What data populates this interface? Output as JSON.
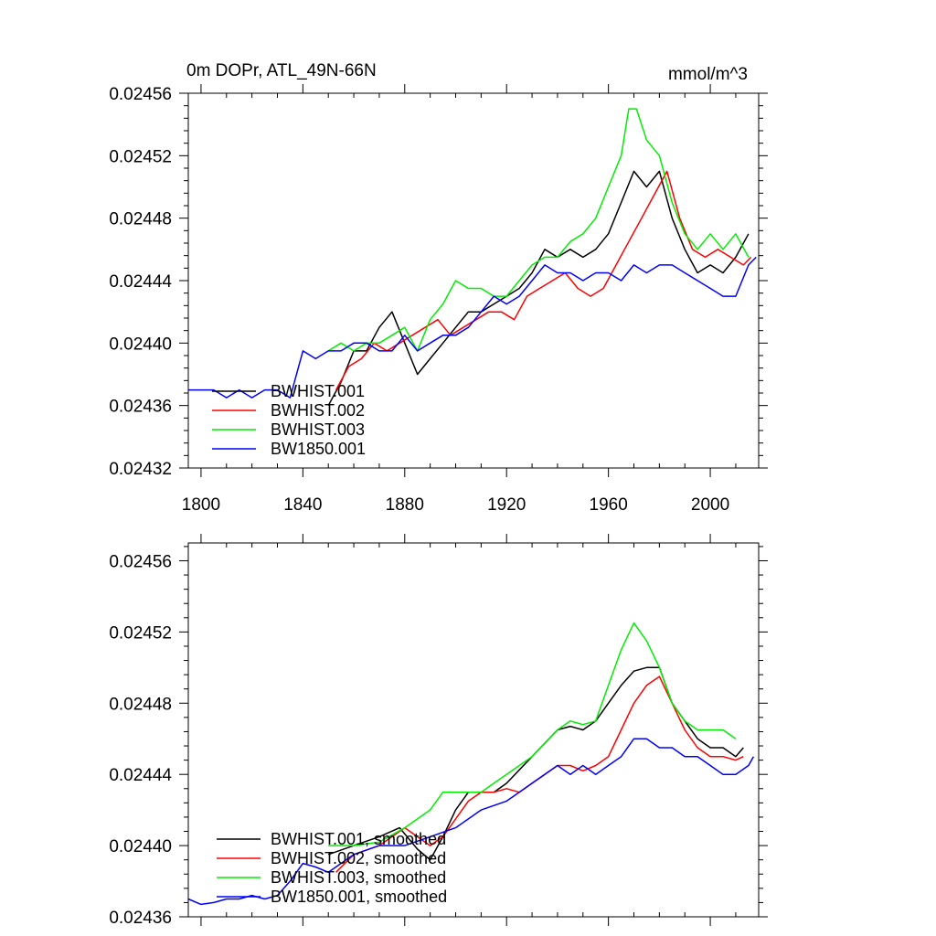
{
  "chart_data": [
    {
      "type": "line",
      "title": "0m DOPr, ATL_49N-66N",
      "units": "mmol/m^3",
      "xlim": [
        1795,
        2019
      ],
      "ylim": [
        0.02432,
        0.02456
      ],
      "xticks": [
        1800,
        1840,
        1880,
        1920,
        1960,
        2000
      ],
      "xtick_labels": [
        "1800",
        "1840",
        "1880",
        "1920",
        "1960",
        "2000"
      ],
      "yticks": [
        0.02432,
        0.02436,
        0.0244,
        0.02444,
        0.02448,
        0.02452,
        0.02456
      ],
      "ytick_labels": [
        "0.02432",
        "0.02436",
        "0.02440",
        "0.02444",
        "0.02448",
        "0.02452",
        "0.02456"
      ],
      "legend_position": "bottom-left",
      "series": [
        {
          "name": "BWHIST.001",
          "color": "#000000",
          "x": [
            1850,
            1855,
            1860,
            1865,
            1870,
            1875,
            1880,
            1885,
            1890,
            1895,
            1900,
            1905,
            1910,
            1915,
            1920,
            1925,
            1930,
            1935,
            1940,
            1945,
            1950,
            1955,
            1960,
            1965,
            1970,
            1975,
            1980,
            1985,
            1990,
            1995,
            2000,
            2005,
            2010,
            2015
          ],
          "y": [
            0.02436,
            0.024375,
            0.024395,
            0.024395,
            0.02441,
            0.02442,
            0.0244,
            0.02438,
            0.02439,
            0.0244,
            0.02441,
            0.02442,
            0.02442,
            0.024425,
            0.02443,
            0.024435,
            0.024445,
            0.02446,
            0.024455,
            0.02446,
            0.024455,
            0.02446,
            0.02447,
            0.02449,
            0.02451,
            0.0245,
            0.02451,
            0.02448,
            0.02446,
            0.024445,
            0.02445,
            0.024445,
            0.024455,
            0.02447
          ]
        },
        {
          "name": "BWHIST.002",
          "color": "#ff0000",
          "x": [
            1853,
            1858,
            1863,
            1868,
            1873,
            1878,
            1883,
            1888,
            1893,
            1898,
            1903,
            1908,
            1913,
            1918,
            1923,
            1928,
            1933,
            1938,
            1943,
            1948,
            1953,
            1958,
            1963,
            1968,
            1973,
            1978,
            1983,
            1988,
            1993,
            1998,
            2003,
            2008,
            2013,
            2016
          ],
          "y": [
            0.02437,
            0.024385,
            0.02439,
            0.0244,
            0.024395,
            0.0244,
            0.024405,
            0.02441,
            0.024415,
            0.024405,
            0.02441,
            0.024415,
            0.02442,
            0.02442,
            0.024415,
            0.02443,
            0.024435,
            0.02444,
            0.024445,
            0.024435,
            0.02443,
            0.024435,
            0.02445,
            0.024465,
            0.02448,
            0.024495,
            0.02451,
            0.02448,
            0.02446,
            0.024455,
            0.02446,
            0.024455,
            0.02445,
            0.024455
          ]
        },
        {
          "name": "BWHIST.003",
          "color": "#00ee00",
          "x": [
            1850,
            1855,
            1860,
            1865,
            1870,
            1875,
            1880,
            1885,
            1890,
            1895,
            1900,
            1905,
            1910,
            1915,
            1920,
            1925,
            1930,
            1935,
            1940,
            1945,
            1950,
            1955,
            1960,
            1965,
            1968,
            1971,
            1975,
            1980,
            1985,
            1990,
            1995,
            2000,
            2005,
            2010,
            2015
          ],
          "y": [
            0.024395,
            0.0244,
            0.024395,
            0.0244,
            0.0244,
            0.024405,
            0.02441,
            0.024395,
            0.024415,
            0.024425,
            0.02444,
            0.024435,
            0.024435,
            0.02443,
            0.02443,
            0.02444,
            0.02445,
            0.024455,
            0.024455,
            0.024465,
            0.02447,
            0.02448,
            0.0245,
            0.02452,
            0.02455,
            0.02455,
            0.02453,
            0.02452,
            0.02449,
            0.02447,
            0.02446,
            0.02447,
            0.02446,
            0.02447,
            0.024455
          ]
        },
        {
          "name": "BW1850.001",
          "color": "#0000ff",
          "x": [
            1795,
            1800,
            1805,
            1810,
            1815,
            1820,
            1825,
            1830,
            1835,
            1840,
            1845,
            1850,
            1855,
            1860,
            1865,
            1870,
            1875,
            1880,
            1885,
            1890,
            1895,
            1900,
            1905,
            1910,
            1915,
            1920,
            1925,
            1930,
            1935,
            1940,
            1945,
            1950,
            1955,
            1960,
            1965,
            1970,
            1975,
            1980,
            1985,
            1990,
            1995,
            2000,
            2005,
            2010,
            2015,
            2018
          ],
          "y": [
            0.02437,
            0.02437,
            0.02437,
            0.024365,
            0.02437,
            0.024365,
            0.02437,
            0.02437,
            0.024365,
            0.024395,
            0.02439,
            0.024395,
            0.024395,
            0.0244,
            0.0244,
            0.024395,
            0.024395,
            0.024405,
            0.024395,
            0.0244,
            0.024405,
            0.024405,
            0.02441,
            0.02442,
            0.02443,
            0.024425,
            0.02443,
            0.02444,
            0.02445,
            0.024445,
            0.024445,
            0.02444,
            0.024445,
            0.024445,
            0.02444,
            0.02445,
            0.024445,
            0.02445,
            0.02445,
            0.024445,
            0.02444,
            0.024435,
            0.02443,
            0.02443,
            0.02445,
            0.024455
          ]
        }
      ]
    },
    {
      "type": "line",
      "title": "",
      "xlim": [
        1795,
        2019
      ],
      "ylim": [
        0.02436,
        0.02457
      ],
      "xticks": [
        1800,
        1840,
        1880,
        1920,
        1960,
        2000
      ],
      "yticks": [
        0.02436,
        0.0244,
        0.02444,
        0.02448,
        0.02452,
        0.02456
      ],
      "ytick_labels": [
        "0.02436",
        "0.02440",
        "0.02444",
        "0.02448",
        "0.02452",
        "0.02456"
      ],
      "legend_position": "bottom-left",
      "series": [
        {
          "name": "BWHIST.001, smoothed",
          "color": "#000000",
          "x": [
            1850,
            1860,
            1870,
            1878,
            1885,
            1890,
            1895,
            1900,
            1905,
            1910,
            1915,
            1920,
            1930,
            1940,
            1945,
            1950,
            1955,
            1960,
            1965,
            1970,
            1975,
            1980,
            1985,
            1990,
            1995,
            2000,
            2005,
            2010,
            2013
          ],
          "y": [
            0.024395,
            0.0244,
            0.024405,
            0.02441,
            0.024398,
            0.024392,
            0.024405,
            0.02442,
            0.02443,
            0.02443,
            0.02443,
            0.024435,
            0.02445,
            0.024465,
            0.024467,
            0.024465,
            0.02447,
            0.02448,
            0.02449,
            0.024498,
            0.0245,
            0.0245,
            0.02448,
            0.02447,
            0.02446,
            0.024455,
            0.024455,
            0.02445,
            0.024455
          ]
        },
        {
          "name": "BWHIST.002, smoothed",
          "color": "#ff0000",
          "x": [
            1853,
            1860,
            1870,
            1880,
            1885,
            1890,
            1895,
            1900,
            1905,
            1910,
            1915,
            1920,
            1925,
            1930,
            1935,
            1940,
            1945,
            1950,
            1955,
            1960,
            1965,
            1970,
            1975,
            1980,
            1985,
            1990,
            1995,
            2000,
            2005,
            2010,
            2013
          ],
          "y": [
            0.024385,
            0.024395,
            0.0244,
            0.02441,
            0.024405,
            0.0244,
            0.024405,
            0.024415,
            0.024425,
            0.02443,
            0.02443,
            0.024432,
            0.02443,
            0.024435,
            0.02444,
            0.024445,
            0.024445,
            0.024442,
            0.024445,
            0.02445,
            0.024465,
            0.02448,
            0.02449,
            0.024495,
            0.02448,
            0.024465,
            0.024455,
            0.02445,
            0.02445,
            0.024448,
            0.02445
          ]
        },
        {
          "name": "BWHIST.003, smoothed",
          "color": "#00ee00",
          "x": [
            1850,
            1860,
            1870,
            1880,
            1890,
            1895,
            1900,
            1905,
            1910,
            1915,
            1920,
            1930,
            1940,
            1945,
            1950,
            1955,
            1960,
            1965,
            1970,
            1975,
            1980,
            1985,
            1990,
            1995,
            2000,
            2005,
            2010
          ],
          "y": [
            0.0244,
            0.0244,
            0.024402,
            0.02441,
            0.02442,
            0.02443,
            0.02443,
            0.02443,
            0.02443,
            0.024435,
            0.02444,
            0.02445,
            0.024465,
            0.02447,
            0.024468,
            0.02447,
            0.02449,
            0.02451,
            0.024525,
            0.024515,
            0.0245,
            0.02448,
            0.02447,
            0.024465,
            0.024465,
            0.024465,
            0.02446
          ]
        },
        {
          "name": "BW1850.001, smoothed",
          "color": "#0000ff",
          "x": [
            1795,
            1800,
            1805,
            1810,
            1815,
            1820,
            1825,
            1830,
            1835,
            1840,
            1845,
            1850,
            1855,
            1860,
            1870,
            1880,
            1890,
            1900,
            1910,
            1920,
            1925,
            1930,
            1940,
            1945,
            1950,
            1955,
            1960,
            1965,
            1970,
            1975,
            1980,
            1985,
            1990,
            1995,
            2000,
            2005,
            2010,
            2015,
            2017
          ],
          "y": [
            0.02437,
            0.024367,
            0.024368,
            0.02437,
            0.02437,
            0.024372,
            0.02437,
            0.024372,
            0.02438,
            0.02439,
            0.024388,
            0.024385,
            0.02439,
            0.024395,
            0.0244,
            0.0244,
            0.024405,
            0.02441,
            0.02442,
            0.024425,
            0.02443,
            0.024435,
            0.024445,
            0.02444,
            0.024445,
            0.02444,
            0.024445,
            0.02445,
            0.02446,
            0.02446,
            0.024455,
            0.024455,
            0.02445,
            0.02445,
            0.024445,
            0.02444,
            0.02444,
            0.024445,
            0.02445
          ]
        }
      ]
    }
  ]
}
